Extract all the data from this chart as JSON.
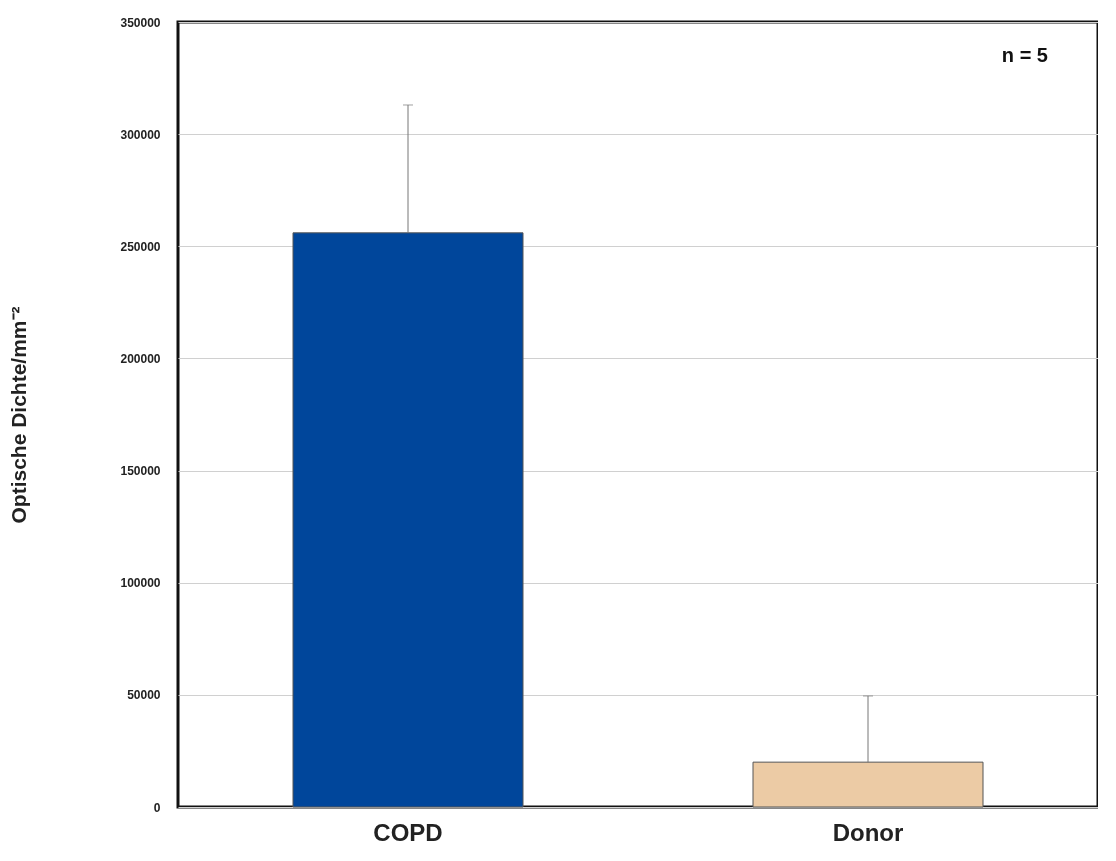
{
  "chart_data": {
    "type": "bar",
    "ylabel": "Optische Dichte/mm⁻²",
    "categories": [
      "COPD",
      "Donor"
    ],
    "values": [
      256000,
      20000
    ],
    "colors": [
      "#00469b",
      "#eccba5"
    ],
    "errors": [
      [
        256000,
        313000
      ],
      [
        20000,
        49500
      ]
    ],
    "ylim": [
      0,
      350000
    ],
    "yticks": [
      0,
      50000,
      100000,
      150000,
      200000,
      250000,
      300000,
      350000
    ],
    "grid": "y",
    "annotations": [
      "n = 5"
    ]
  }
}
